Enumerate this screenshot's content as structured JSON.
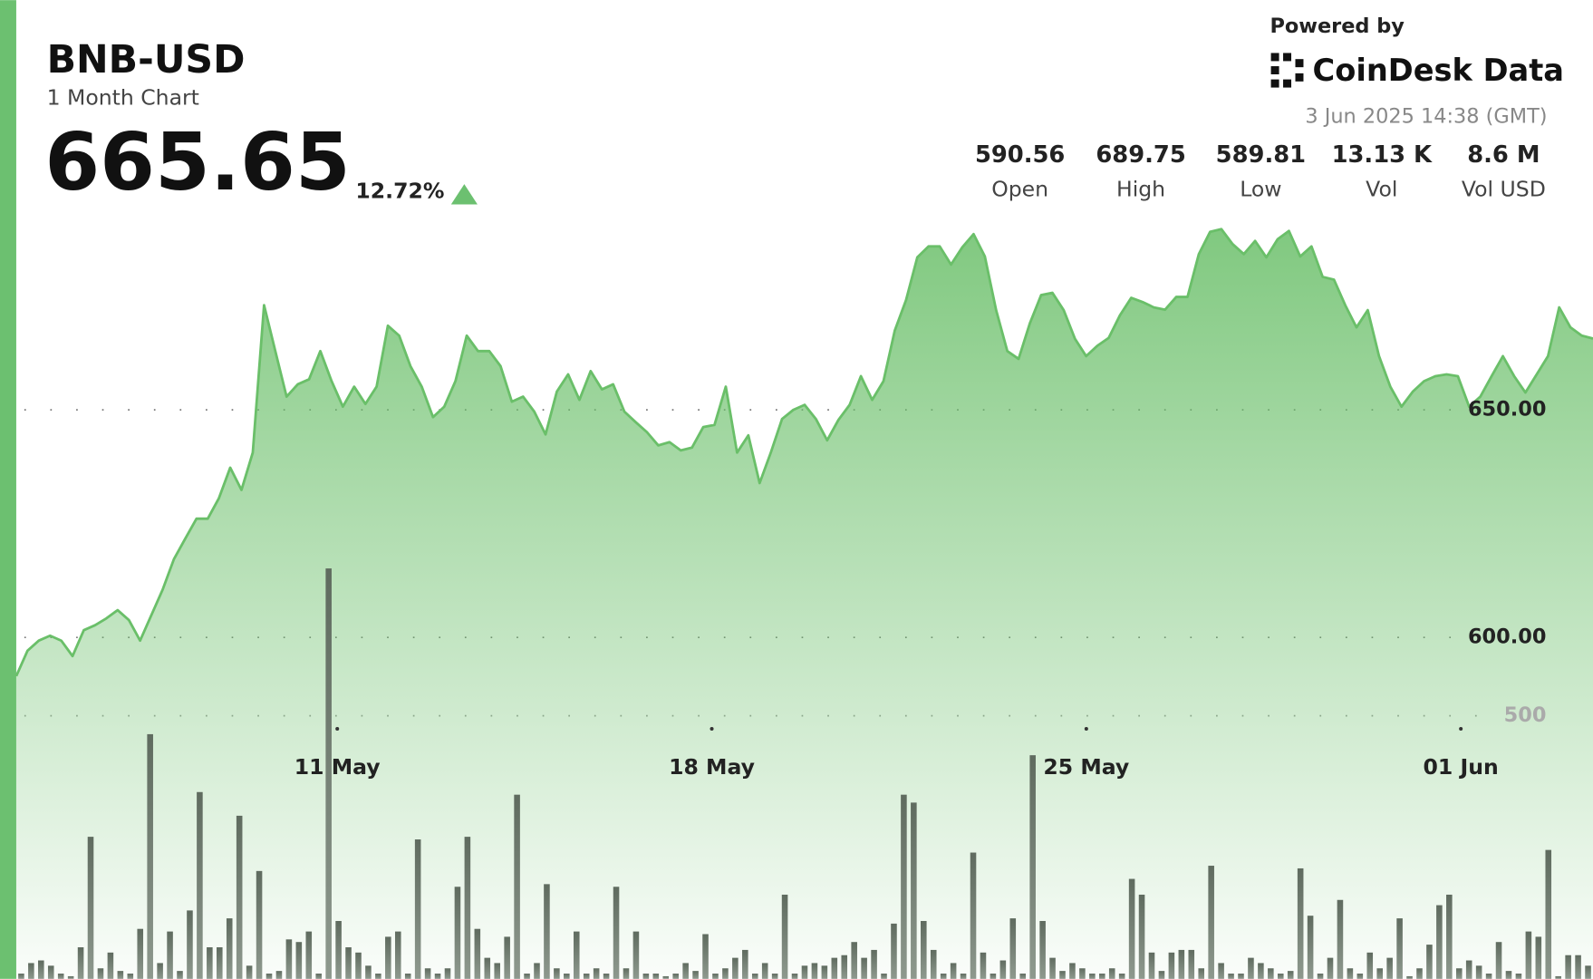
{
  "header": {
    "symbol": "BNB-USD",
    "subtitle": "1 Month Chart",
    "price": "665.65",
    "change": "12.72%",
    "powered_by": "Powered by",
    "brand": "CoinDesk Data",
    "timestamp": "3 Jun 2025 14:38 (GMT)"
  },
  "stats": [
    {
      "value": "590.56",
      "label": "Open"
    },
    {
      "value": "689.75",
      "label": "High"
    },
    {
      "value": "589.81",
      "label": "Low"
    },
    {
      "value": "13.13 K",
      "label": "Vol"
    },
    {
      "value": "8.6 M",
      "label": "Vol USD"
    }
  ],
  "chart_data": {
    "type": "area",
    "color": "#6abf69",
    "values": [
      591.5,
      597.1,
      599.3,
      600.4,
      599.3,
      595.9,
      601.6,
      602.7,
      604.2,
      606.0,
      603.8,
      599.3,
      604.9,
      610.5,
      617.2,
      621.7,
      626.1,
      626.1,
      630.6,
      637.3,
      632.4,
      640.6,
      673.0,
      662.9,
      652.9,
      655.6,
      656.7,
      662.9,
      656.3,
      650.7,
      655.1,
      651.3,
      655.1,
      668.5,
      666.3,
      659.6,
      655.1,
      648.4,
      650.7,
      656.3,
      666.3,
      662.9,
      662.9,
      659.6,
      651.8,
      652.9,
      649.6,
      644.6,
      654.0,
      657.8,
      652.2,
      658.5,
      654.5,
      655.6,
      649.6,
      647.3,
      645.1,
      642.2,
      642.9,
      641.1,
      641.7,
      646.2,
      646.7,
      655.1,
      640.6,
      644.4,
      633.9,
      640.6,
      648.0,
      650.0,
      651.1,
      648.0,
      643.3,
      647.8,
      651.1,
      657.4,
      652.2,
      656.3,
      667.4,
      674.1,
      683.5,
      685.9,
      685.9,
      681.9,
      685.7,
      688.6,
      683.7,
      671.9,
      662.9,
      661.2,
      669.0,
      675.2,
      675.7,
      671.9,
      665.6,
      661.8,
      664.1,
      665.8,
      670.8,
      674.6,
      673.7,
      672.5,
      672.0,
      674.8,
      674.8,
      684.2,
      689.1,
      689.7,
      686.4,
      684.2,
      687.1,
      683.5,
      687.5,
      689.3,
      683.7,
      685.9,
      679.2,
      678.6,
      673.0,
      668.1,
      671.9,
      661.8,
      655.1,
      650.7,
      654.0,
      656.3,
      657.4,
      657.8,
      657.4,
      650.7,
      652.9,
      657.4,
      661.8,
      657.4,
      653.8,
      657.8,
      661.8,
      672.5,
      668.1,
      666.3,
      665.65
    ],
    "xlim": [
      0,
      29.47
    ],
    "xticks": [
      {
        "value": 6,
        "label": "11 May"
      },
      {
        "value": 13,
        "label": "18 May"
      },
      {
        "value": 20,
        "label": "25 May"
      },
      {
        "value": 27,
        "label": "01 Jun"
      }
    ],
    "ylim": [
      525,
      740
    ],
    "yticks": [
      {
        "value": 600,
        "label": "600.00"
      },
      {
        "value": 650,
        "label": "650.00"
      }
    ],
    "grid": true,
    "volume": {
      "color": "#5f6b5f",
      "ylim": [
        0,
        1860
      ],
      "yticks": [
        500
      ],
      "values": [
        10,
        30,
        35,
        25,
        10,
        5,
        60,
        270,
        20,
        50,
        15,
        10,
        95,
        465,
        30,
        90,
        15,
        130,
        355,
        60,
        60,
        115,
        310,
        25,
        205,
        10,
        15,
        75,
        70,
        90,
        10,
        780,
        110,
        60,
        50,
        25,
        10,
        80,
        90,
        10,
        265,
        20,
        10,
        20,
        175,
        270,
        95,
        40,
        30,
        80,
        350,
        10,
        30,
        180,
        20,
        10,
        90,
        10,
        20,
        10,
        175,
        20,
        90,
        10,
        10,
        5,
        10,
        30,
        15,
        85,
        10,
        20,
        40,
        55,
        10,
        30,
        10,
        160,
        10,
        25,
        30,
        25,
        40,
        45,
        70,
        40,
        55,
        10,
        105,
        350,
        335,
        110,
        55,
        10,
        30,
        10,
        240,
        50,
        10,
        35,
        115,
        10,
        425,
        110,
        40,
        15,
        30,
        20,
        10,
        10,
        20,
        10,
        190,
        160,
        50,
        15,
        50,
        55,
        55,
        20,
        215,
        30,
        10,
        10,
        40,
        30,
        20,
        10,
        15,
        210,
        120,
        10,
        40,
        150,
        20,
        10,
        50,
        20,
        40,
        115,
        5,
        20,
        65,
        140,
        160,
        20,
        35,
        25,
        10,
        70,
        15,
        10,
        90,
        80,
        245,
        5,
        45,
        45,
        25
      ]
    }
  }
}
